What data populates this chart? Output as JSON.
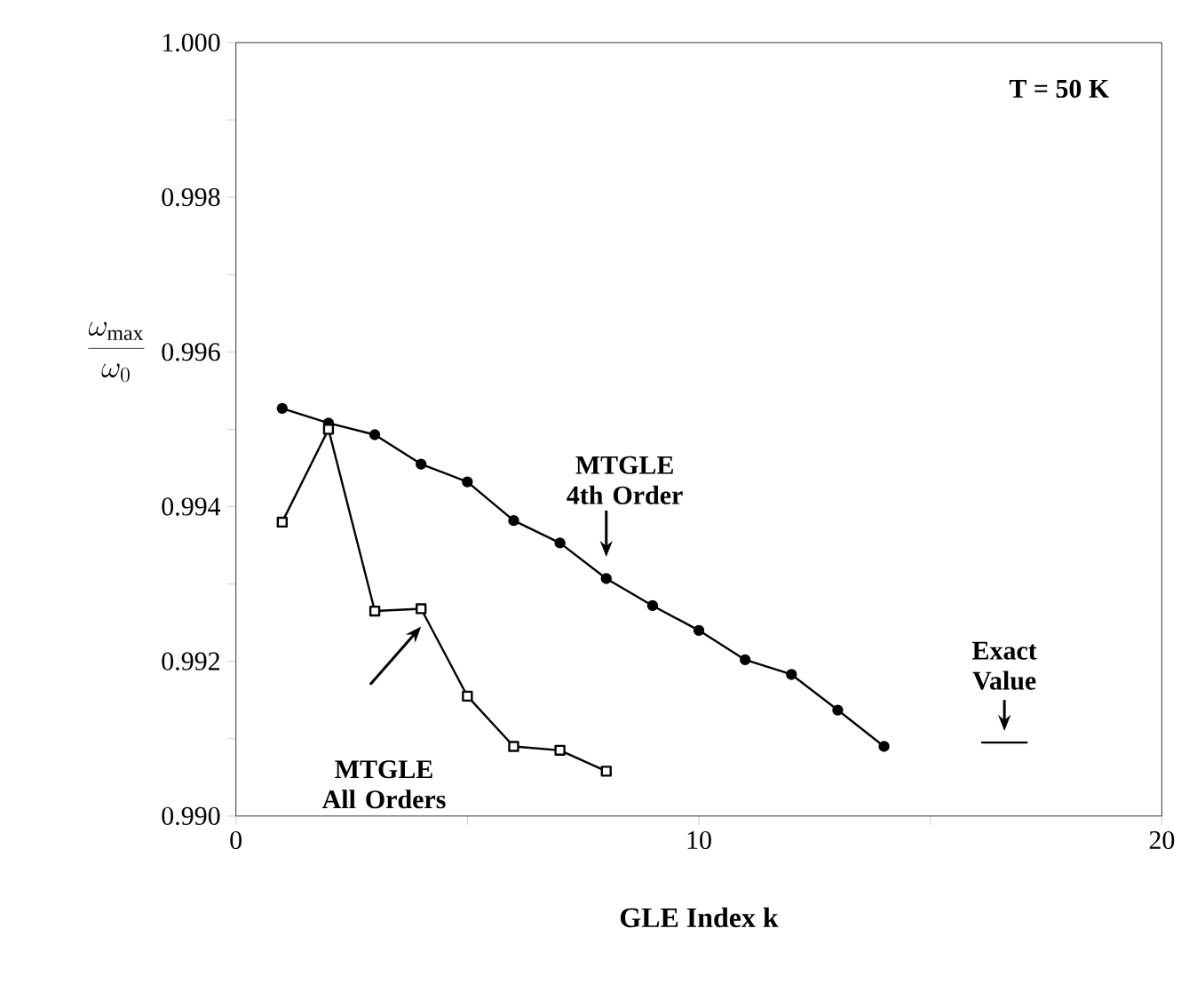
{
  "chart_data": {
    "type": "line",
    "xlabel": "GLE Index k",
    "ylabel": "\\frac{\\omega_{\\mathrm{max}}}{\\omega_0}",
    "xlim": [
      0,
      20
    ],
    "ylim": [
      0.99,
      1.0
    ],
    "xticks": [
      0,
      {
        "value": 5,
        "label": null
      },
      10,
      {
        "value": 15,
        "label": null
      },
      20
    ],
    "yticks": [
      {
        "value": 0.99,
        "label": "0.990"
      },
      {
        "value": 0.991,
        "label": null
      },
      0.992,
      {
        "value": 0.993,
        "label": null
      },
      0.994,
      {
        "value": 0.995,
        "label": null
      },
      0.996,
      {
        "value": 0.997,
        "label": null
      },
      0.998,
      {
        "value": 0.999,
        "label": null
      },
      {
        "value": 1.0,
        "label": "1.000"
      }
    ],
    "annotations": [
      "T = 50 K"
    ],
    "series": [
      {
        "name": "MTGLE 4th Order",
        "color": "#000000",
        "marker": "circle",
        "x": [
          1,
          2,
          3,
          4,
          5,
          6,
          7,
          8,
          9,
          10,
          11,
          12,
          13,
          14
        ],
        "values": [
          0.99527,
          0.99508,
          0.99493,
          0.99455,
          0.99432,
          0.99382,
          0.99353,
          0.99307,
          0.99272,
          0.9924,
          0.99202,
          0.99183,
          0.99137,
          0.9909
        ]
      },
      {
        "name": "MTGLE All Orders",
        "color": "#000000",
        "marker": "square",
        "x": [
          1,
          2,
          3,
          4,
          5,
          6,
          7,
          8
        ],
        "values": [
          0.9938,
          0.995,
          0.99265,
          0.99268,
          0.99155,
          0.9909,
          0.99085,
          0.99058
        ]
      },
      {
        "name": "Exact Value",
        "color": "#000000",
        "marker": "none",
        "x": [
          16.1,
          17.1
        ],
        "values": [
          0.99095,
          0.99095
        ]
      }
    ]
  }
}
